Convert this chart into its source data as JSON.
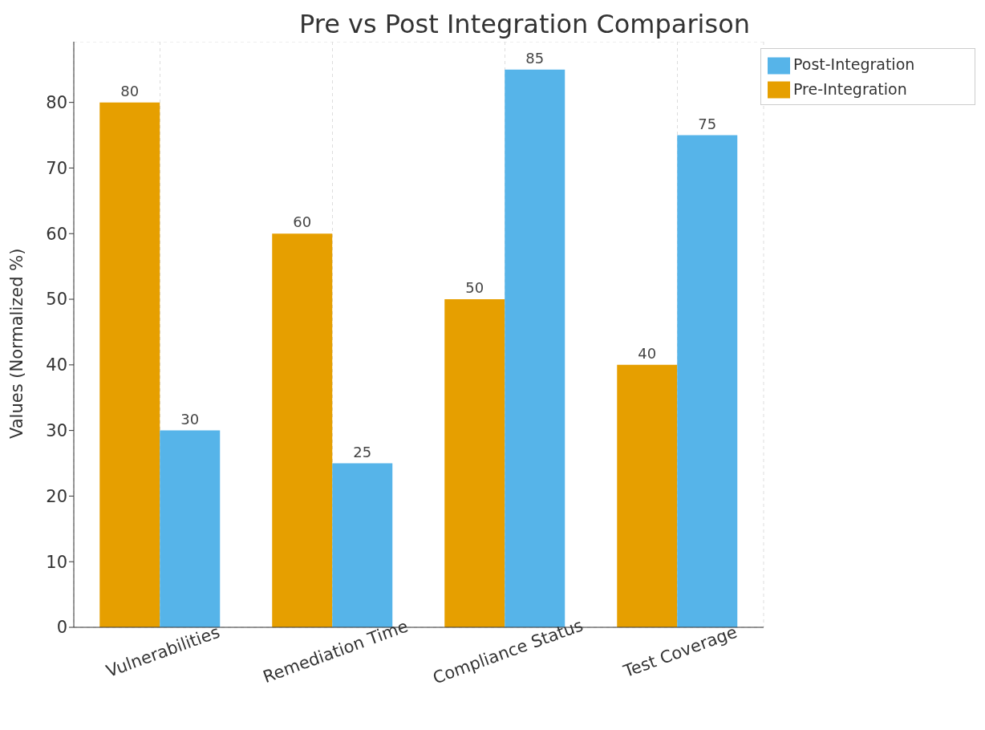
{
  "chart_data": {
    "type": "bar",
    "title": "Pre vs Post Integration Comparison",
    "ylabel": "Values (Normalized %)",
    "categories": [
      "Vulnerabilities",
      "Remediation Time",
      "Compliance Status",
      "Test Coverage"
    ],
    "series": [
      {
        "name": "Pre-Integration",
        "color": "#e69f00",
        "values": [
          80,
          60,
          50,
          40
        ]
      },
      {
        "name": "Post-Integration",
        "color": "#56b4e9",
        "values": [
          30,
          25,
          85,
          75
        ]
      }
    ],
    "ylim": [
      0,
      89.25
    ],
    "yticks": [
      0,
      10,
      20,
      30,
      40,
      50,
      60,
      70,
      80
    ],
    "grid": true,
    "legend": "top right",
    "data_labels": true
  }
}
